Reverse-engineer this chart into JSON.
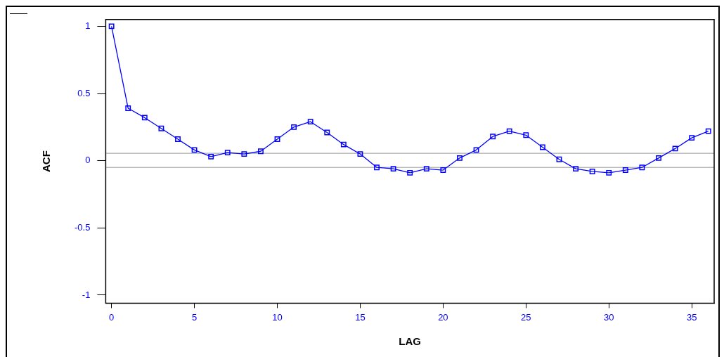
{
  "chart_data": {
    "type": "line",
    "xlabel": "LAG",
    "ylabel": "ACF",
    "x": [
      0,
      1,
      2,
      3,
      4,
      5,
      6,
      7,
      8,
      9,
      10,
      11,
      12,
      13,
      14,
      15,
      16,
      17,
      18,
      19,
      20,
      21,
      22,
      23,
      24,
      25,
      26,
      27,
      28,
      29,
      30,
      31,
      32,
      33,
      34,
      35,
      36
    ],
    "series": [
      {
        "color": "#0000ff",
        "values": [
          1,
          0.39,
          0.32,
          0.24,
          0.16,
          0.08,
          0.03,
          0.06,
          0.05,
          0.07,
          0.16,
          0.25,
          0.29,
          0.21,
          0.12,
          0.05,
          -0.05,
          -0.06,
          -0.09,
          -0.06,
          -0.07,
          0.02,
          0.08,
          0.18,
          0.22,
          0.19,
          0.1,
          0.01,
          -0.06,
          -0.08,
          -0.09,
          -0.07,
          -0.05,
          0.02,
          0.09,
          0.17,
          0.22
        ]
      }
    ],
    "xlim": [
      -0.35,
      36.35
    ],
    "ylim": [
      -1.06,
      1.05
    ],
    "xticks": [
      0,
      5,
      10,
      15,
      20,
      25,
      30,
      35
    ],
    "yticks": [
      -1,
      -0.5,
      0,
      0.5,
      1
    ],
    "ref_lines": [
      {
        "axis": "y",
        "value": 0.055,
        "color": "#999999",
        "line_style": "solid"
      },
      {
        "axis": "y",
        "value": -0.05,
        "color": "#999999",
        "line_style": "solid"
      }
    ],
    "grid": false,
    "legend": false,
    "marker": "square",
    "line_style": "solid"
  }
}
